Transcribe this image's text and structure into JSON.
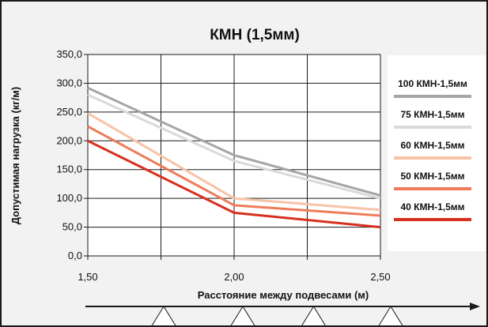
{
  "chart_data": {
    "type": "line",
    "title": "КМН (1,5мм)",
    "xlabel": "Расстояние между подвесами (м)",
    "ylabel": "Допустимая нагрузка (кг/м)",
    "x": [
      1.5,
      2.0,
      2.5
    ],
    "x_tick_labels": [
      "1,50",
      "2,00",
      "2,50"
    ],
    "xlim": [
      1.5,
      2.5
    ],
    "ylim": [
      0,
      350
    ],
    "y_ticks": [
      0,
      50,
      100,
      150,
      200,
      250,
      300,
      350
    ],
    "y_tick_labels": [
      "0,0",
      "50,0",
      "100,0",
      "150,0",
      "200,0",
      "250,0",
      "300,0",
      "350,0"
    ],
    "grid": true,
    "legend_position": "right",
    "series": [
      {
        "name": "100 КМН-1,5мм",
        "color": "#a6a6a6",
        "values": [
          292,
          175,
          105
        ]
      },
      {
        "name": "75 КМН-1,5мм",
        "color": "#d9d9d9",
        "values": [
          280,
          165,
          100
        ]
      },
      {
        "name": "60 КМН-1,5мм",
        "color": "#f8c3a6",
        "values": [
          248,
          100,
          80
        ]
      },
      {
        "name": "50 КМН-1,5мм",
        "color": "#ee7c5a",
        "values": [
          225,
          88,
          70
        ]
      },
      {
        "name": "40 КМН-1,5мм",
        "color": "#d7301f",
        "values": [
          200,
          75,
          50
        ]
      }
    ]
  }
}
